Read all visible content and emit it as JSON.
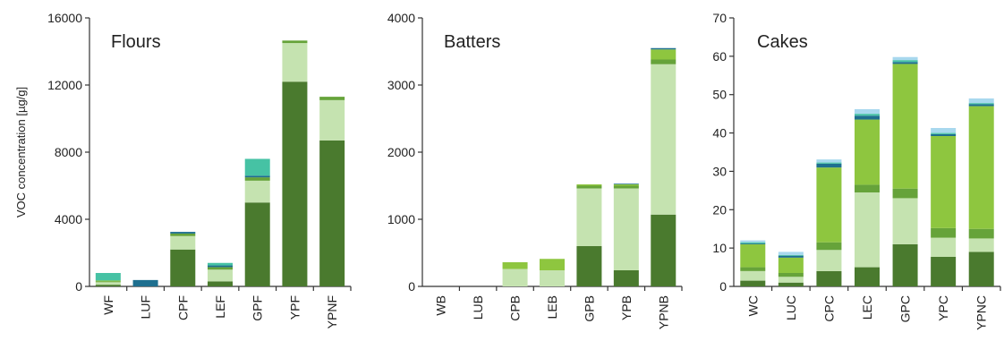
{
  "y_axis_label": "VOC concentration [µg/g]",
  "segment_colors": [
    "#4a7a2e",
    "#c5e3b0",
    "#66a33a",
    "#8ec63f",
    "#1e6f8f",
    "#46c2a4",
    "#a8d8ee"
  ],
  "chart_data": [
    {
      "type": "bar",
      "stacked": true,
      "title": "Flours",
      "ylabel": "VOC concentration [µg/g]",
      "ylim": [
        0,
        16000
      ],
      "yticks": [
        0,
        4000,
        8000,
        12000,
        16000
      ],
      "ytick_labels": [
        "0",
        "4000",
        "8000",
        "12000",
        "16000"
      ],
      "categories": [
        "WF",
        "LUF",
        "CPF",
        "LEF",
        "GPF",
        "YPF",
        "YPNF"
      ],
      "series": [
        {
          "values": [
            100,
            0,
            2200,
            300,
            5000,
            12200,
            8700
          ]
        },
        {
          "values": [
            150,
            0,
            800,
            700,
            1300,
            2300,
            2400
          ]
        },
        {
          "values": [
            50,
            0,
            150,
            150,
            200,
            150,
            200
          ]
        },
        {
          "values": [
            50,
            0,
            0,
            0,
            0,
            0,
            0
          ]
        },
        {
          "values": [
            0,
            380,
            100,
            100,
            100,
            0,
            0
          ]
        },
        {
          "values": [
            450,
            0,
            0,
            150,
            1000,
            0,
            0
          ]
        },
        {
          "values": [
            0,
            0,
            0,
            0,
            0,
            0,
            0
          ]
        }
      ]
    },
    {
      "type": "bar",
      "stacked": true,
      "title": "Batters",
      "ylabel": "",
      "ylim": [
        0,
        4000
      ],
      "yticks": [
        0,
        1000,
        2000,
        3000,
        4000
      ],
      "ytick_labels": [
        "0",
        "1000",
        "2000",
        "3000",
        "4000"
      ],
      "categories": [
        "WB",
        "LUB",
        "CPB",
        "LEB",
        "GPB",
        "YPB",
        "YPNB"
      ],
      "series": [
        {
          "values": [
            0,
            0,
            0,
            0,
            600,
            240,
            1070
          ]
        },
        {
          "values": [
            0,
            0,
            260,
            240,
            860,
            1220,
            2240
          ]
        },
        {
          "values": [
            0,
            0,
            0,
            0,
            40,
            40,
            70
          ]
        },
        {
          "values": [
            0,
            0,
            100,
            170,
            20,
            20,
            150
          ]
        },
        {
          "values": [
            0,
            0,
            0,
            0,
            0,
            10,
            20
          ]
        },
        {
          "values": [
            0,
            0,
            0,
            0,
            0,
            0,
            0
          ]
        },
        {
          "values": [
            0,
            0,
            0,
            0,
            0,
            0,
            0
          ]
        }
      ]
    },
    {
      "type": "bar",
      "stacked": true,
      "title": "Cakes",
      "ylabel": "",
      "ylim": [
        0,
        70
      ],
      "yticks": [
        0,
        10,
        20,
        30,
        40,
        50,
        60,
        70
      ],
      "ytick_labels": [
        "0",
        "10",
        "20",
        "30",
        "40",
        "50",
        "60",
        "70"
      ],
      "categories": [
        "WC",
        "LUC",
        "CPC",
        "LEC",
        "GPC",
        "YPC",
        "YPNC"
      ],
      "series": [
        {
          "values": [
            1.5,
            1,
            4,
            5,
            11,
            7.7,
            9
          ]
        },
        {
          "values": [
            2.5,
            1.5,
            5.5,
            19.5,
            12,
            5,
            3.5
          ]
        },
        {
          "values": [
            1,
            1,
            2,
            2,
            2.5,
            2.5,
            2.5
          ]
        },
        {
          "values": [
            6,
            4,
            19.5,
            17,
            32.5,
            24,
            32
          ]
        },
        {
          "values": [
            0.2,
            0.5,
            1,
            1,
            0.5,
            0.5,
            0.5
          ]
        },
        {
          "values": [
            0.3,
            0.2,
            0.3,
            0.5,
            0.5,
            0.3,
            0.3
          ]
        },
        {
          "values": [
            0.5,
            0.8,
            0.8,
            1.2,
            0.8,
            1.3,
            1.2
          ]
        }
      ]
    }
  ]
}
